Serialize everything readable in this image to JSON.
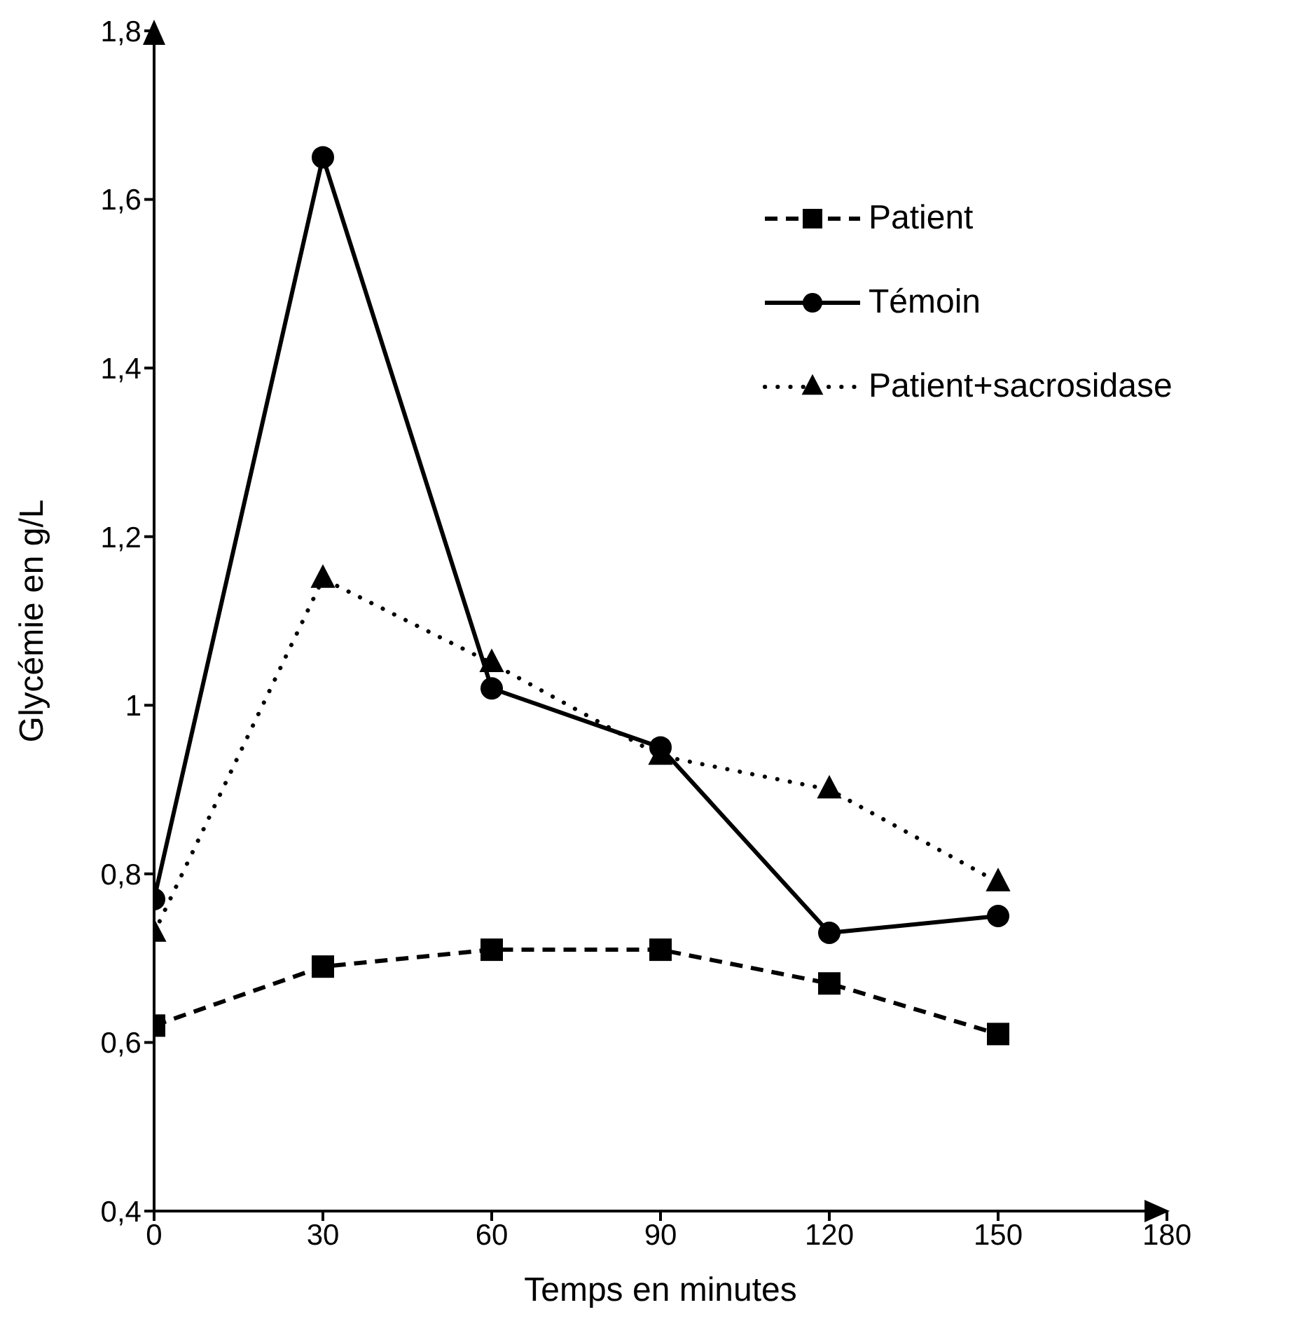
{
  "chart_data": {
    "type": "line",
    "xlabel": "Temps en minutes",
    "ylabel": "Glycémie en g/L",
    "x": [
      0,
      30,
      60,
      90,
      120,
      150
    ],
    "series": [
      {
        "name": "Patient",
        "color": "#000000",
        "line_style": "dashed",
        "marker": "square",
        "values": [
          0.62,
          0.69,
          0.71,
          0.71,
          0.67,
          0.61
        ]
      },
      {
        "name": "Témoin",
        "color": "#000000",
        "line_style": "solid",
        "marker": "circle",
        "values": [
          0.77,
          1.65,
          1.02,
          0.95,
          0.73,
          0.75
        ]
      },
      {
        "name": "Patient+sacrosidase",
        "color": "#000000",
        "line_style": "dotted",
        "marker": "triangle",
        "values": [
          0.73,
          1.15,
          1.05,
          0.94,
          0.9,
          0.79
        ]
      }
    ],
    "xlim": [
      0,
      180
    ],
    "xticks": [
      0,
      30,
      60,
      90,
      120,
      150,
      180
    ],
    "ylim": [
      0.4,
      1.8
    ],
    "yticks": [
      {
        "value": 0.4,
        "label": "0,4"
      },
      {
        "value": 0.6,
        "label": "0,6"
      },
      {
        "value": 0.8,
        "label": "0,8"
      },
      1,
      {
        "value": 1.2,
        "label": "1,2"
      },
      {
        "value": 1.4,
        "label": "1,4"
      },
      {
        "value": 1.6,
        "label": "1,6"
      },
      {
        "value": 1.8,
        "label": "1,8"
      }
    ],
    "grid": false,
    "legend": "top right"
  }
}
